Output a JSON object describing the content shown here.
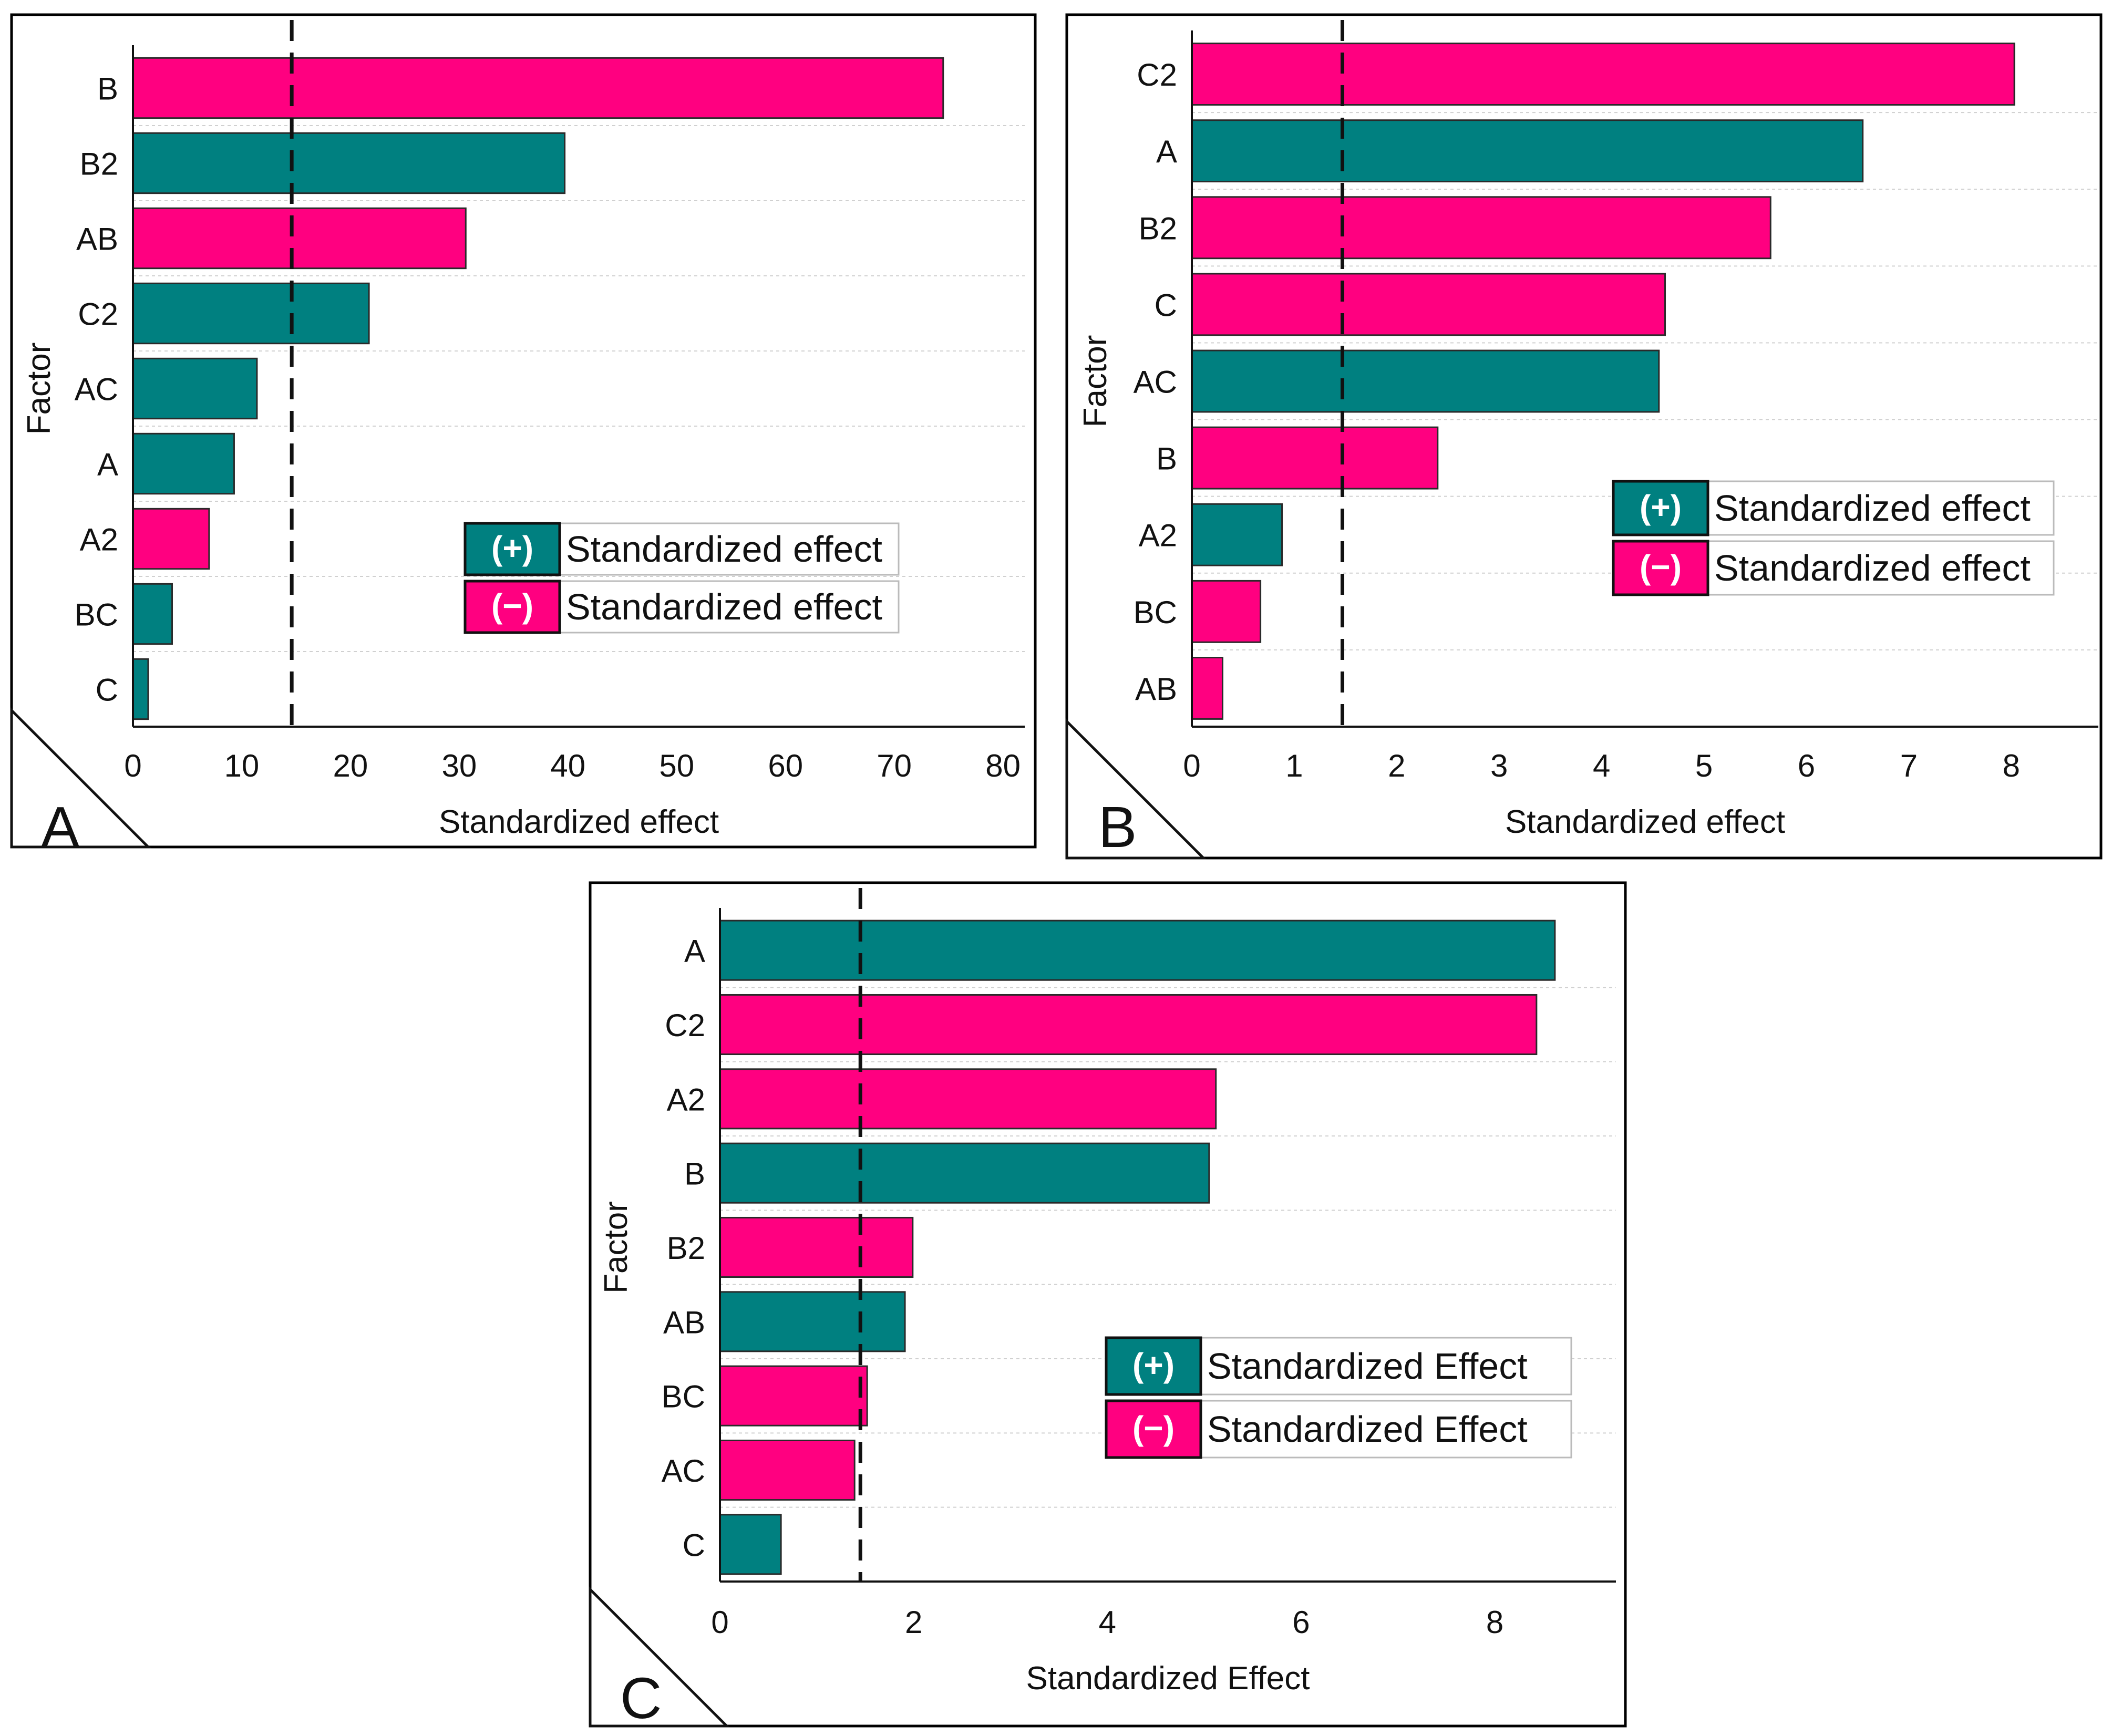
{
  "colors": {
    "positive": "#008080",
    "negative": "#ff0080",
    "grid": "#d0d0d0",
    "frame": "#000000"
  },
  "chart_data": [
    {
      "type": "bar",
      "orientation": "horizontal",
      "panel_label": "A",
      "categories": [
        "B",
        "B2",
        "AB",
        "C2",
        "AC",
        "A",
        "A2",
        "BC",
        "C"
      ],
      "values": [
        74.5,
        39.7,
        30.6,
        21.7,
        11.4,
        9.3,
        7.0,
        3.6,
        1.4
      ],
      "signs": [
        "-",
        "+",
        "-",
        "+",
        "+",
        "+",
        "-",
        "+",
        "+"
      ],
      "xlabel": "Standardized effect",
      "ylabel": "Factor",
      "xlim": [
        0,
        82
      ],
      "xticks": [
        0,
        10,
        20,
        30,
        40,
        50,
        60,
        70,
        80
      ],
      "reference_line": 14.6,
      "legend": [
        {
          "sign": "(+)",
          "label": "Standardized effect"
        },
        {
          "sign": "(−)",
          "label": "Standardized effect"
        }
      ]
    },
    {
      "type": "bar",
      "orientation": "horizontal",
      "panel_label": "B",
      "categories": [
        "C2",
        "A",
        "B2",
        "C",
        "AC",
        "B",
        "A2",
        "BC",
        "AB"
      ],
      "values": [
        8.03,
        6.55,
        5.65,
        4.62,
        4.56,
        2.4,
        0.88,
        0.67,
        0.3
      ],
      "signs": [
        "-",
        "+",
        "-",
        "-",
        "+",
        "-",
        "+",
        "-",
        "-"
      ],
      "xlabel": "Standardized effect",
      "ylabel": "Factor",
      "xlim": [
        0,
        8.85
      ],
      "xticks": [
        0,
        1,
        2,
        3,
        4,
        5,
        6,
        7,
        8
      ],
      "reference_line": 1.47,
      "legend": [
        {
          "sign": "(+)",
          "label": "Standardized effect"
        },
        {
          "sign": "(−)",
          "label": "Standardized effect"
        }
      ]
    },
    {
      "type": "bar",
      "orientation": "horizontal",
      "panel_label": "C",
      "categories": [
        "A",
        "C2",
        "A2",
        "B",
        "B2",
        "AB",
        "BC",
        "AC",
        "C"
      ],
      "values": [
        8.62,
        8.43,
        5.12,
        5.05,
        1.99,
        1.91,
        1.52,
        1.39,
        0.63
      ],
      "signs": [
        "+",
        "-",
        "-",
        "+",
        "-",
        "+",
        "-",
        "-",
        "+"
      ],
      "xlabel": "Standardized Effect",
      "ylabel": "Factor",
      "xlim": [
        0,
        9.25
      ],
      "xticks": [
        0,
        2,
        4,
        6,
        8
      ],
      "reference_line": 1.45,
      "legend": [
        {
          "sign": "(+)",
          "label": "Standardized Effect"
        },
        {
          "sign": "(−)",
          "label": "Standardized Effect"
        }
      ]
    }
  ]
}
